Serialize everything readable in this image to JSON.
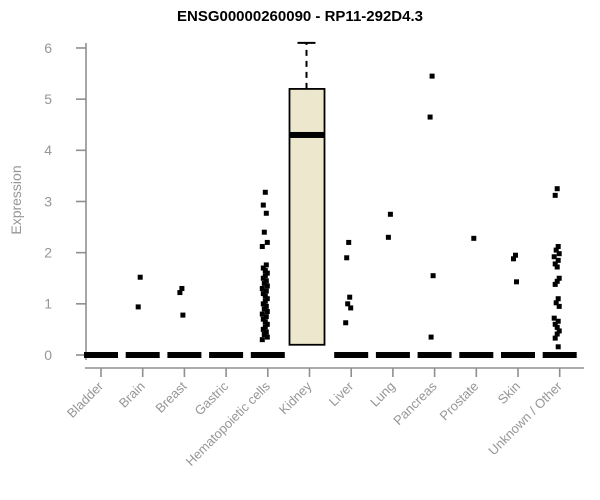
{
  "chart_data": {
    "type": "boxplot",
    "title": "ENSG00000260090 - RP11-292D4.3",
    "xlabel": "",
    "ylabel": "Expression",
    "ylim": [
      0,
      6
    ],
    "yticks": [
      0,
      1,
      2,
      3,
      4,
      5,
      6
    ],
    "grid": false,
    "legend": "none",
    "colors": {
      "box_fill": "#EDE8CD",
      "box_stroke": "#000000",
      "median": "#000000",
      "point": "#000000",
      "axis": "#8F8F8F",
      "tick_text": "#969696",
      "title_text": "#000000",
      "background": "#FFFFFF"
    },
    "categories": [
      "Bladder",
      "Brain",
      "Breast",
      "Gastric",
      "Hematopoietic cells",
      "Kidney",
      "Liver",
      "Lung",
      "Pancreas",
      "Prostate",
      "Skin",
      "Unknown / Other"
    ],
    "groups": [
      {
        "label": "Bladder",
        "box": {
          "median": 0
        },
        "points": []
      },
      {
        "label": "Brain",
        "box": {
          "median": 0
        },
        "points": [
          1.52,
          0.94
        ]
      },
      {
        "label": "Breast",
        "box": {
          "median": 0
        },
        "points": [
          1.3,
          1.22,
          0.78
        ]
      },
      {
        "label": "Gastric",
        "box": {
          "median": 0
        },
        "points": []
      },
      {
        "label": "Hematopoietic cells",
        "box": {
          "median": 0
        },
        "points": [
          3.18,
          2.93,
          2.77,
          2.4,
          2.2,
          2.12,
          1.76,
          1.7,
          1.65,
          1.6,
          1.55,
          1.5,
          1.45,
          1.4,
          1.35,
          1.3,
          1.25,
          1.2,
          1.15,
          1.1,
          1.05,
          1.0,
          0.95,
          0.9,
          0.85,
          0.8,
          0.75,
          0.7,
          0.65,
          0.6,
          0.55,
          0.5,
          0.45,
          0.4,
          0.35,
          0.3
        ]
      },
      {
        "label": "Kidney",
        "box": {
          "q1": 0.2,
          "median": 4.3,
          "q3": 5.2,
          "whisker_high": 6.1,
          "whisker_style": "dashed"
        },
        "points": []
      },
      {
        "label": "Liver",
        "box": {
          "median": 0
        },
        "points": [
          2.2,
          1.9,
          1.13,
          1.0,
          0.92,
          0.63
        ]
      },
      {
        "label": "Lung",
        "box": {
          "median": 0
        },
        "points": [
          2.75,
          2.3
        ]
      },
      {
        "label": "Pancreas",
        "box": {
          "median": 0
        },
        "points": [
          5.45,
          4.65,
          1.55,
          0.35
        ]
      },
      {
        "label": "Prostate",
        "box": {
          "median": 0
        },
        "points": [
          2.28
        ]
      },
      {
        "label": "Skin",
        "box": {
          "median": 0
        },
        "points": [
          1.95,
          1.88,
          1.43
        ]
      },
      {
        "label": "Unknown / Other",
        "box": {
          "median": 0
        },
        "points": [
          3.25,
          3.12,
          2.12,
          2.05,
          1.98,
          1.92,
          1.85,
          1.78,
          1.72,
          1.5,
          1.44,
          1.38,
          1.1,
          1.02,
          0.95,
          0.72,
          0.66,
          0.6,
          0.54,
          0.47,
          0.41,
          0.33,
          0.16
        ]
      }
    ]
  }
}
